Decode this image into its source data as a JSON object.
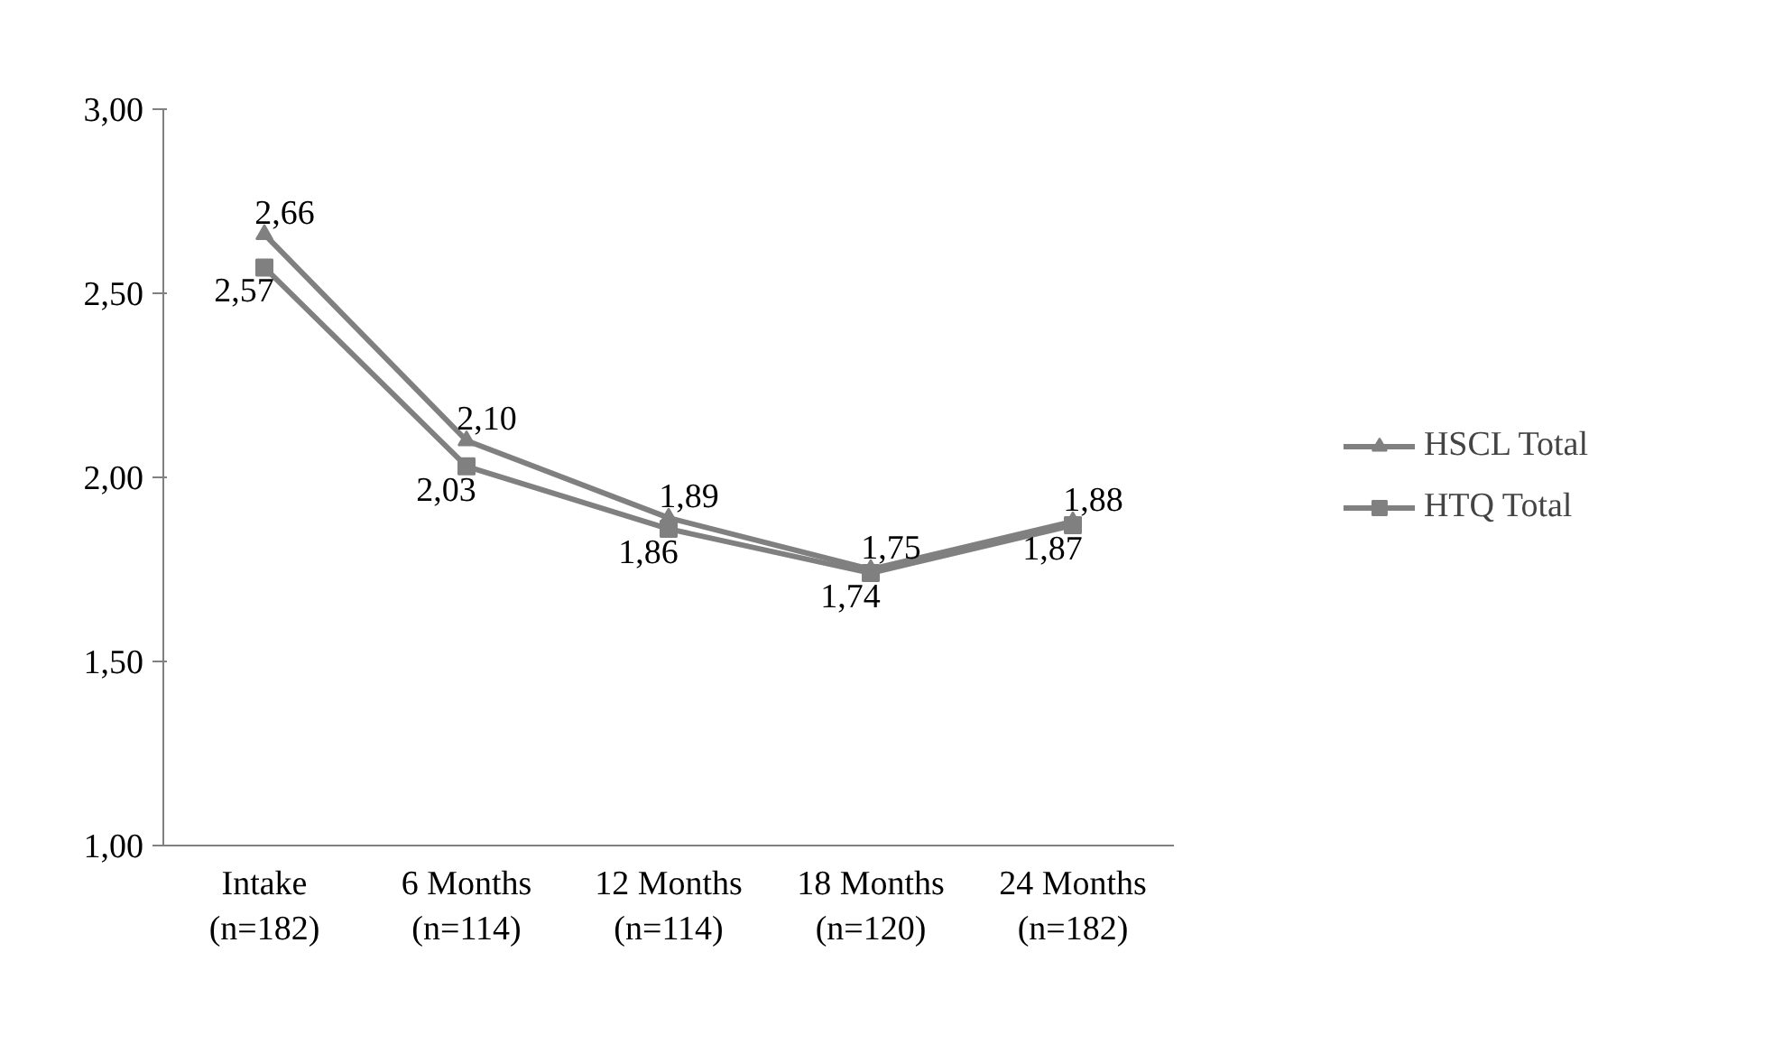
{
  "chart_data": {
    "type": "line",
    "categories": [
      "Intake\n(n=182)",
      "6 Months\n(n=114)",
      "12 Months\n(n=114)",
      "18 Months\n(n=120)",
      "24 Months\n(n=182)"
    ],
    "ylim": [
      1,
      3
    ],
    "yticks": [
      {
        "value": 1,
        "label": "1,00"
      },
      {
        "value": 1.5,
        "label": "1,50"
      },
      {
        "value": 2,
        "label": "2,00"
      },
      {
        "value": 2.5,
        "label": "2,50"
      },
      {
        "value": 3,
        "label": "3,00"
      }
    ],
    "grid": false,
    "legend": "right",
    "line_style": "solid",
    "series": [
      {
        "name": "HSCL Total",
        "color": "#808080",
        "marker": "triangle",
        "values": [
          2.66,
          2.1,
          1.89,
          1.75,
          1.88
        ],
        "value_labels": [
          "2,66",
          "2,10",
          "1,89",
          "1,75",
          "1,88"
        ]
      },
      {
        "name": "HTQ Total",
        "color": "#808080",
        "marker": "square",
        "values": [
          2.57,
          2.03,
          1.86,
          1.74,
          1.87
        ],
        "value_labels": [
          "2,57",
          "2,03",
          "1,86",
          "1,74",
          "1,87"
        ]
      }
    ]
  }
}
